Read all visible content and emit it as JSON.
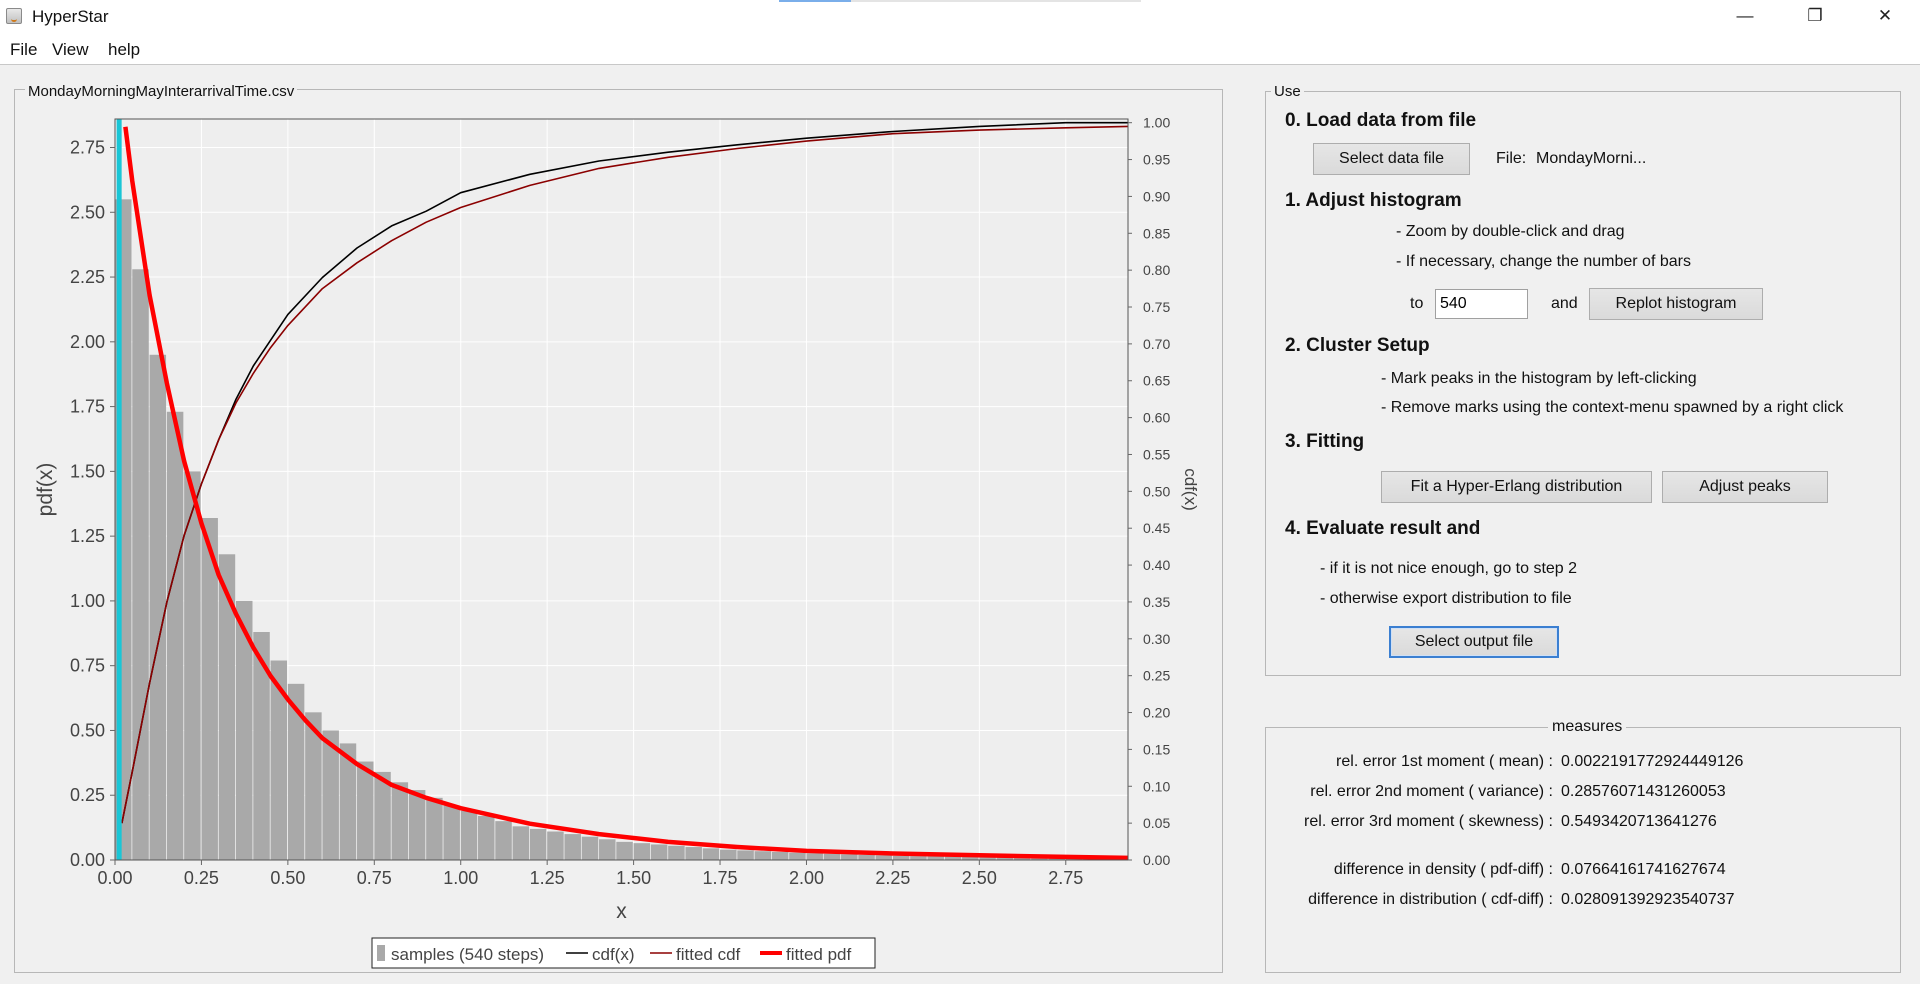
{
  "window": {
    "title": "HyperStar",
    "controls": {
      "minimize": "—",
      "restore": "❐",
      "close": "✕"
    }
  },
  "menu": [
    "File",
    "View",
    "help"
  ],
  "chart_panel": {
    "title": "MondayMorningMayInterarrivalTime.csv"
  },
  "chart_data": {
    "type": "bar",
    "xlabel": "x",
    "ylabel": "pdf(x)",
    "y2label": "cdf(x)",
    "xlim": [
      0.0,
      2.93
    ],
    "ylim": [
      0.0,
      2.86
    ],
    "y2lim": [
      0.0,
      1.005
    ],
    "x_ticks": [
      "0.00",
      "0.25",
      "0.50",
      "0.75",
      "1.00",
      "1.25",
      "1.50",
      "1.75",
      "2.00",
      "2.25",
      "2.50",
      "2.75"
    ],
    "y_ticks": [
      "0.00",
      "0.25",
      "0.50",
      "0.75",
      "1.00",
      "1.25",
      "1.50",
      "1.75",
      "2.00",
      "2.25",
      "2.50",
      "2.75"
    ],
    "y2_ticks": [
      "0.00",
      "0.05",
      "0.10",
      "0.15",
      "0.20",
      "0.25",
      "0.30",
      "0.35",
      "0.40",
      "0.45",
      "0.50",
      "0.55",
      "0.60",
      "0.65",
      "0.70",
      "0.75",
      "0.80",
      "0.85",
      "0.90",
      "0.95",
      "1.00"
    ],
    "grid": true,
    "legend_position": "bottom",
    "legend": [
      "samples (540 steps)",
      "cdf(x)",
      "fitted cdf",
      "fitted pdf"
    ],
    "marker_x": 0.012,
    "histogram": {
      "name": "samples (540 steps)",
      "bin_width": 0.05,
      "x": [
        0.025,
        0.075,
        0.125,
        0.175,
        0.225,
        0.275,
        0.325,
        0.375,
        0.425,
        0.475,
        0.525,
        0.575,
        0.625,
        0.675,
        0.725,
        0.775,
        0.825,
        0.875,
        0.925,
        0.975,
        1.025,
        1.075,
        1.125,
        1.175,
        1.225,
        1.275,
        1.325,
        1.375,
        1.425,
        1.475,
        1.525,
        1.575,
        1.625,
        1.675,
        1.725,
        1.775,
        1.825,
        1.875,
        1.925,
        1.975,
        2.025,
        2.075,
        2.125,
        2.175,
        2.225,
        2.275,
        2.325,
        2.375,
        2.425,
        2.475,
        2.525,
        2.575,
        2.625,
        2.675,
        2.725,
        2.775,
        2.825,
        2.875
      ],
      "values": [
        2.55,
        2.28,
        1.95,
        1.73,
        1.5,
        1.32,
        1.18,
        1.0,
        0.88,
        0.77,
        0.68,
        0.57,
        0.5,
        0.45,
        0.38,
        0.34,
        0.3,
        0.27,
        0.24,
        0.21,
        0.19,
        0.17,
        0.15,
        0.13,
        0.12,
        0.11,
        0.1,
        0.09,
        0.08,
        0.07,
        0.065,
        0.06,
        0.055,
        0.05,
        0.045,
        0.04,
        0.037,
        0.034,
        0.031,
        0.028,
        0.026,
        0.024,
        0.022,
        0.02,
        0.018,
        0.016,
        0.015,
        0.014,
        0.013,
        0.012,
        0.011,
        0.01,
        0.009,
        0.008,
        0.008,
        0.007,
        0.007,
        0.006
      ]
    },
    "series": [
      {
        "name": "cdf(x)",
        "x": [
          0.02,
          0.05,
          0.1,
          0.15,
          0.2,
          0.25,
          0.3,
          0.35,
          0.4,
          0.45,
          0.5,
          0.6,
          0.7,
          0.8,
          0.9,
          1.0,
          1.2,
          1.4,
          1.6,
          1.8,
          2.0,
          2.25,
          2.5,
          2.75,
          2.93
        ],
        "values": [
          0.05,
          0.12,
          0.24,
          0.35,
          0.44,
          0.51,
          0.57,
          0.625,
          0.67,
          0.705,
          0.74,
          0.79,
          0.83,
          0.86,
          0.88,
          0.905,
          0.93,
          0.948,
          0.96,
          0.97,
          0.979,
          0.988,
          0.995,
          1.0,
          1.0
        ]
      },
      {
        "name": "fitted cdf",
        "x": [
          0.02,
          0.05,
          0.1,
          0.15,
          0.2,
          0.25,
          0.3,
          0.35,
          0.4,
          0.45,
          0.5,
          0.6,
          0.7,
          0.8,
          0.9,
          1.0,
          1.2,
          1.4,
          1.6,
          1.8,
          2.0,
          2.25,
          2.5,
          2.75,
          2.93
        ],
        "values": [
          0.05,
          0.12,
          0.24,
          0.35,
          0.44,
          0.51,
          0.57,
          0.62,
          0.66,
          0.695,
          0.725,
          0.775,
          0.81,
          0.84,
          0.865,
          0.885,
          0.915,
          0.938,
          0.953,
          0.965,
          0.975,
          0.985,
          0.99,
          0.993,
          0.995
        ]
      },
      {
        "name": "fitted pdf",
        "x": [
          0.03,
          0.05,
          0.1,
          0.15,
          0.2,
          0.25,
          0.3,
          0.35,
          0.4,
          0.45,
          0.5,
          0.55,
          0.6,
          0.7,
          0.8,
          0.9,
          1.0,
          1.2,
          1.4,
          1.6,
          1.8,
          2.0,
          2.25,
          2.5,
          2.75,
          2.93
        ],
        "values": [
          2.83,
          2.62,
          2.18,
          1.84,
          1.54,
          1.3,
          1.1,
          0.95,
          0.82,
          0.71,
          0.62,
          0.54,
          0.47,
          0.37,
          0.29,
          0.24,
          0.2,
          0.14,
          0.1,
          0.07,
          0.05,
          0.035,
          0.025,
          0.018,
          0.012,
          0.008
        ]
      }
    ]
  },
  "use_panel": {
    "title": "Use",
    "step0": {
      "heading": "0. Load data from file",
      "button": "Select data file",
      "file_label": "File:",
      "file_name": "MondayMorni..."
    },
    "step1": {
      "heading": "1. Adjust histogram",
      "hint1": "- Zoom by double-click and drag",
      "hint2": "- If necessary, change the number of bars",
      "to_label": "to",
      "bars_value": "540",
      "and_label": "and",
      "button": "Replot histogram"
    },
    "step2": {
      "heading": "2. Cluster Setup",
      "hint1": "- Mark peaks in the histogram by left-clicking",
      "hint2": "- Remove marks using the context-menu spawned by a right click"
    },
    "step3": {
      "heading": "3. Fitting",
      "fit_button": "Fit a Hyper-Erlang distribution",
      "adjust_button": "Adjust peaks"
    },
    "step4": {
      "heading": "4. Evaluate result and",
      "hint1": "- if it is not nice enough, go to step 2",
      "hint2": "- otherwise export distribution to file",
      "button": "Select output file"
    }
  },
  "measures": {
    "title": "measures",
    "rows": [
      {
        "label": "rel. error 1st moment ( mean) :",
        "value": "0.0022191772924449126"
      },
      {
        "label": "rel. error 2nd moment ( variance) :",
        "value": "0.28576071431260053"
      },
      {
        "label": "rel. error 3rd moment ( skewness) :",
        "value": "0.5493420713641276"
      },
      {
        "label": "difference in density ( pdf-diff)    :",
        "value": "0.07664161741627674"
      },
      {
        "label": "difference in distribution ( cdf-diff) :",
        "value": "0.028091392923540737"
      }
    ]
  },
  "colors": {
    "histogram": "#a9a9a9",
    "fitted_pdf": "#ff0000",
    "cdf": "#000000",
    "fitted_cdf": "#8b0000",
    "marker": "#19c6d6",
    "plot_bg": "#eeeeee"
  }
}
